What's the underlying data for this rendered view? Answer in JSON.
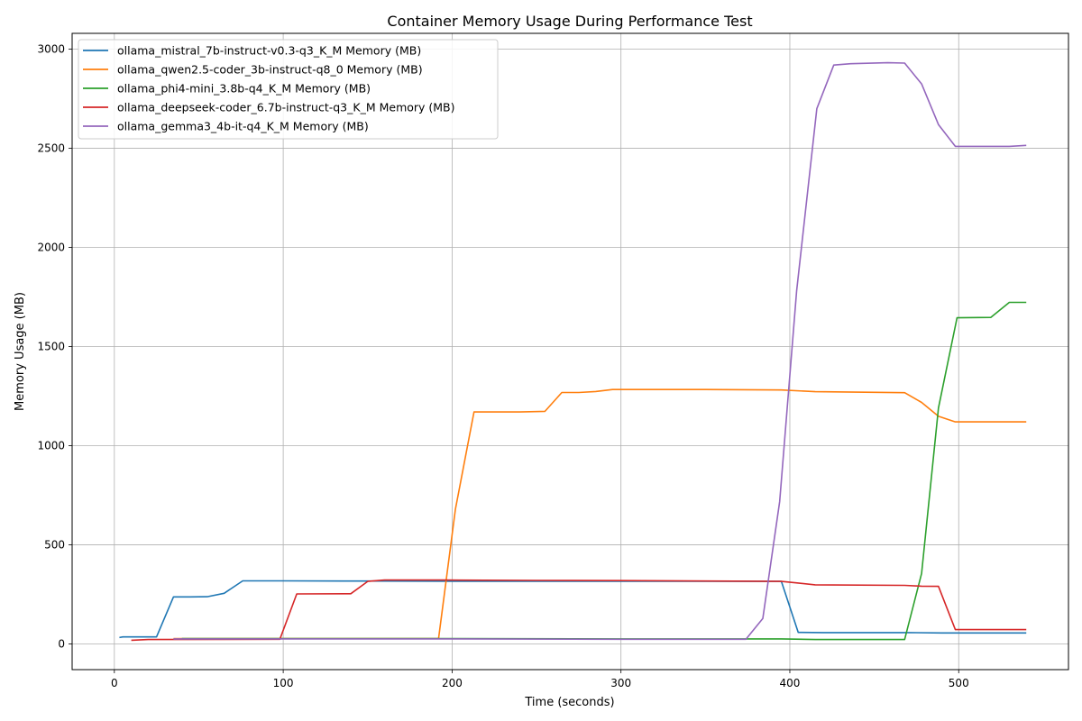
{
  "chart_data": {
    "type": "line",
    "title": "Container Memory Usage During Performance Test",
    "xlabel": "Time (seconds)",
    "ylabel": "Memory Usage (MB)",
    "xlim": [
      -25,
      565
    ],
    "ylim": [
      -130,
      3080
    ],
    "xticks": [
      0,
      100,
      200,
      300,
      400,
      500
    ],
    "yticks": [
      0,
      500,
      1000,
      1500,
      2000,
      2500,
      3000
    ],
    "grid": true,
    "legend_position": "top-left",
    "series": [
      {
        "name": "ollama_mistral_7b-instruct-v0.3-q3_K_M Memory (MB)",
        "color": "#1f77b4",
        "points": [
          [
            3,
            32
          ],
          [
            5,
            35
          ],
          [
            15,
            35
          ],
          [
            25,
            35
          ],
          [
            35,
            237
          ],
          [
            45,
            237
          ],
          [
            55,
            238
          ],
          [
            65,
            255
          ],
          [
            76,
            318
          ],
          [
            100,
            318
          ],
          [
            150,
            317
          ],
          [
            200,
            316
          ],
          [
            300,
            316
          ],
          [
            395,
            315
          ],
          [
            405,
            58
          ],
          [
            420,
            57
          ],
          [
            460,
            57
          ],
          [
            470,
            57
          ],
          [
            490,
            55
          ],
          [
            540,
            55
          ]
        ]
      },
      {
        "name": "ollama_qwen2.5-coder_3b-instruct-q8_0 Memory (MB)",
        "color": "#ff7f0e",
        "points": [
          [
            35,
            27
          ],
          [
            100,
            27
          ],
          [
            192,
            27
          ],
          [
            202,
            680
          ],
          [
            213,
            1170
          ],
          [
            240,
            1170
          ],
          [
            255,
            1173
          ],
          [
            265,
            1268
          ],
          [
            275,
            1268
          ],
          [
            285,
            1273
          ],
          [
            295,
            1283
          ],
          [
            350,
            1283
          ],
          [
            395,
            1281
          ],
          [
            415,
            1272
          ],
          [
            468,
            1267
          ],
          [
            478,
            1218
          ],
          [
            488,
            1148
          ],
          [
            498,
            1120
          ],
          [
            540,
            1120
          ]
        ]
      },
      {
        "name": "ollama_phi4-mini_3.8b-q4_K_M Memory (MB)",
        "color": "#2ca02c",
        "points": [
          [
            40,
            27
          ],
          [
            100,
            27
          ],
          [
            200,
            27
          ],
          [
            300,
            25
          ],
          [
            395,
            25
          ],
          [
            415,
            22
          ],
          [
            468,
            22
          ],
          [
            478,
            355
          ],
          [
            488,
            1190
          ],
          [
            499,
            1645
          ],
          [
            519,
            1647
          ],
          [
            530,
            1723
          ],
          [
            540,
            1723
          ]
        ]
      },
      {
        "name": "ollama_deepseek-coder_6.7b-instruct-q3_K_M Memory (MB)",
        "color": "#d62728",
        "points": [
          [
            10,
            18
          ],
          [
            20,
            22
          ],
          [
            98,
            23
          ],
          [
            108,
            252
          ],
          [
            140,
            253
          ],
          [
            150,
            315
          ],
          [
            160,
            322
          ],
          [
            195,
            322
          ],
          [
            250,
            320
          ],
          [
            300,
            319
          ],
          [
            395,
            315
          ],
          [
            405,
            307
          ],
          [
            415,
            298
          ],
          [
            468,
            295
          ],
          [
            478,
            291
          ],
          [
            488,
            290
          ],
          [
            498,
            72
          ],
          [
            540,
            72
          ]
        ]
      },
      {
        "name": "ollama_gemma3_4b-it-q4_K_M Memory (MB)",
        "color": "#9467bd",
        "points": [
          [
            35,
            25
          ],
          [
            100,
            25
          ],
          [
            200,
            25
          ],
          [
            300,
            23
          ],
          [
            374,
            23
          ],
          [
            384,
            128
          ],
          [
            394,
            718
          ],
          [
            404,
            1780
          ],
          [
            416,
            2700
          ],
          [
            426,
            2920
          ],
          [
            436,
            2927
          ],
          [
            458,
            2932
          ],
          [
            468,
            2930
          ],
          [
            478,
            2825
          ],
          [
            488,
            2620
          ],
          [
            498,
            2510
          ],
          [
            530,
            2510
          ],
          [
            540,
            2515
          ]
        ]
      }
    ]
  }
}
